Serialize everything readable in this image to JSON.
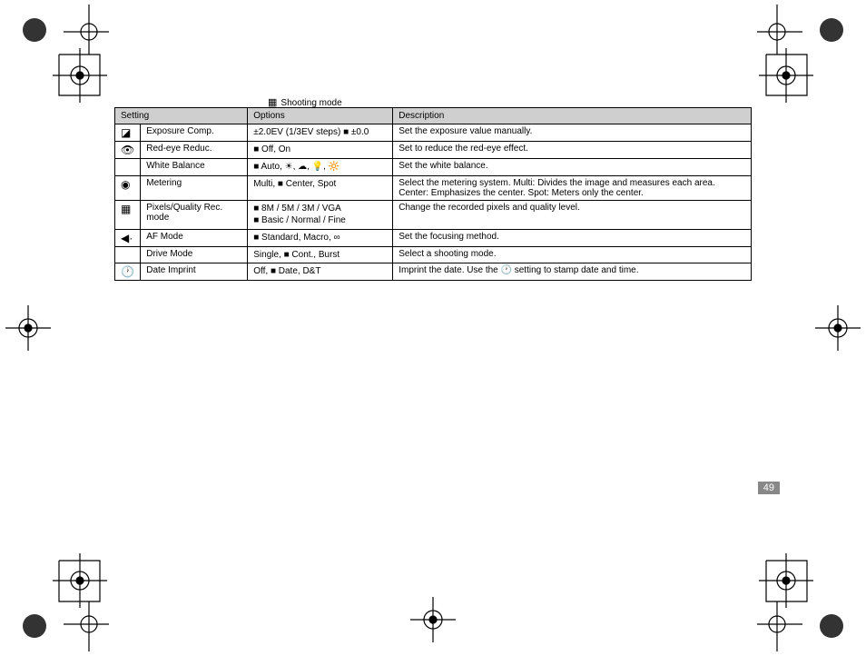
{
  "caption": "Shooting mode",
  "pageNumber": "49",
  "headers": {
    "setting": "Setting",
    "options": "Options",
    "description": "Description"
  },
  "rows": [
    {
      "icon": "◪",
      "setting": "Exposure Comp.",
      "options": "±2.0EV (1/3EV steps)     ■ ±0.0",
      "desc": "Set the exposure value manually."
    },
    {
      "icon": "👁",
      "setting": "Red-eye Reduc.",
      "options": "■ Off, On",
      "desc": "Set to reduce the red-eye effect."
    },
    {
      "icon": "",
      "setting": "White Balance",
      "options": "■ Auto, ☀, ☁, 💡, 🔆",
      "desc": "Set the white balance."
    },
    {
      "icon": "◉",
      "setting": "Metering",
      "options": "Multi, ■ Center, Spot",
      "desc": "Select the metering system. Multi: Divides the image and measures each area. Center: Emphasizes the center. Spot: Meters only the center."
    },
    {
      "icon": "▦",
      "setting": "Pixels/Quality Rec. mode",
      "options": "■ 8M / 5M / 3M / VGA\n■ Basic / Normal / Fine",
      "desc": "Change the recorded pixels and quality level."
    },
    {
      "icon": "◀·",
      "setting": "AF Mode",
      "options": "■ Standard, Macro, ∞",
      "desc": "Set the focusing method."
    },
    {
      "icon": "",
      "setting": "Drive Mode",
      "options": "Single, ■ Cont., Burst",
      "desc": "Select a shooting mode."
    },
    {
      "icon": "🕐",
      "setting": "Date Imprint",
      "options": "Off, ■ Date, D&T",
      "desc": "Imprint the date. Use the 🕐 setting to stamp date and time."
    }
  ]
}
